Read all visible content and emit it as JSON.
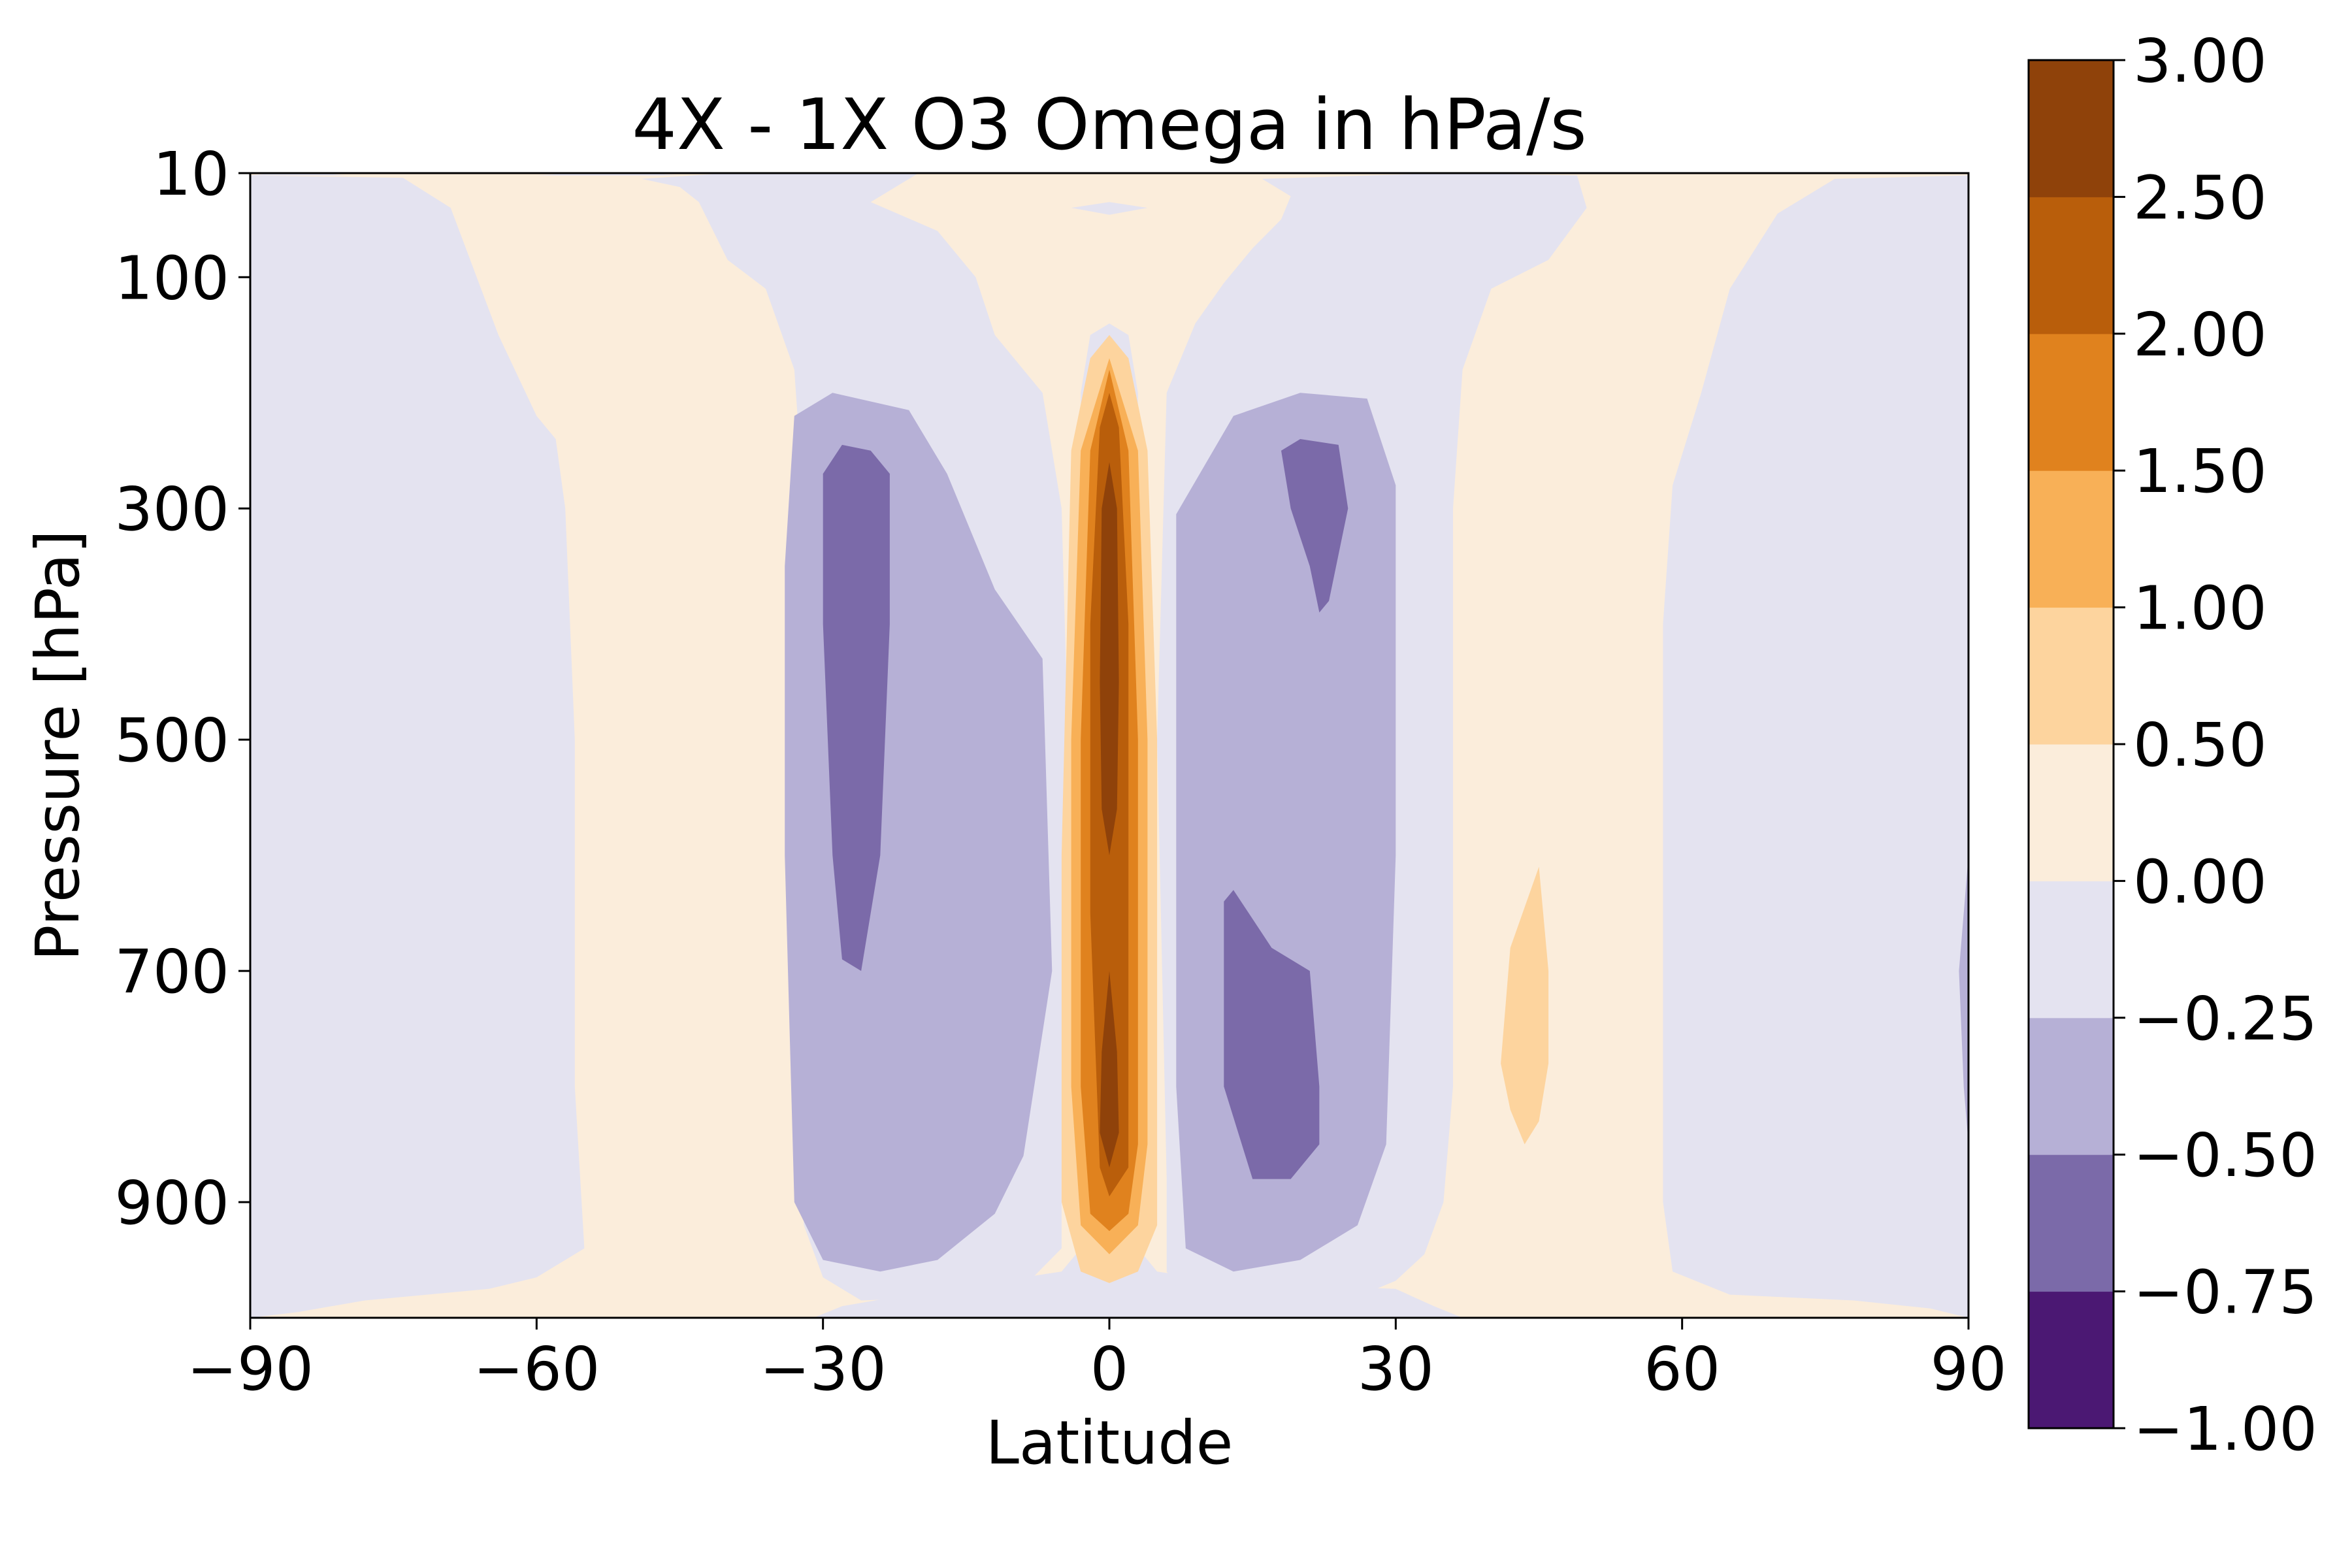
{
  "chart_data": {
    "type": "contourf",
    "title": "4X - 1X O3 Omega in hPa/s",
    "xlabel": "Latitude",
    "ylabel": "Pressure [hPa]",
    "xlim": [
      -90,
      90
    ],
    "ylim": [
      1000,
      10
    ],
    "x_ticks": [
      -90,
      -60,
      -30,
      0,
      30,
      60,
      90
    ],
    "x_tick_labels": [
      "−90",
      "−60",
      "−30",
      "0",
      "30",
      "60",
      "90"
    ],
    "y_ticks": [
      10,
      100,
      300,
      500,
      700,
      900
    ],
    "y_tick_labels": [
      "10",
      "100",
      "300",
      "500",
      "700",
      "900"
    ],
    "colorbar": {
      "levels": [
        -1.0,
        -0.75,
        -0.5,
        -0.25,
        0.0,
        0.5,
        1.0,
        1.5,
        2.0,
        2.5,
        3.0
      ],
      "tick_labels": [
        "−1.00",
        "−0.75",
        "−0.50",
        "−0.25",
        "0.00",
        "0.50",
        "1.00",
        "1.50",
        "2.00",
        "2.50",
        "3.00"
      ],
      "colors": [
        "#4b1873",
        "#7b6aa9",
        "#b6b0d6",
        "#e4e3f0",
        "#fbeddb",
        "#fdd49e",
        "#f8b057",
        "#e0821e",
        "#b95e0b",
        "#8f420a"
      ]
    },
    "regions": [
      {
        "level": 4,
        "points": [
          [
            -31,
            1000
          ],
          [
            -28,
            990
          ],
          [
            -14,
            970
          ],
          [
            -9,
            965
          ],
          [
            -5,
            960
          ],
          [
            -3,
            940
          ],
          [
            -3,
            880
          ],
          [
            -3,
            500
          ],
          [
            -3,
            200
          ],
          [
            -2,
            150
          ],
          [
            0,
            140
          ],
          [
            2,
            150
          ],
          [
            3,
            200
          ],
          [
            3,
            500
          ],
          [
            3,
            880
          ],
          [
            3,
            940
          ],
          [
            5,
            960
          ],
          [
            9,
            965
          ],
          [
            14,
            970
          ],
          [
            30,
            975
          ],
          [
            34,
            990
          ],
          [
            37,
            1000
          ],
          [
            90,
            1000
          ],
          [
            90,
            10
          ],
          [
            -90,
            10
          ],
          [
            -90,
            1000
          ]
        ]
      },
      {
        "level": 3,
        "points": [
          [
            -90,
            1000
          ],
          [
            -90,
            12
          ],
          [
            -74,
            14
          ],
          [
            -69,
            40
          ],
          [
            -64,
            150
          ],
          [
            -60,
            220
          ],
          [
            -58,
            240
          ],
          [
            -57,
            300
          ],
          [
            -56,
            500
          ],
          [
            -56,
            800
          ],
          [
            -55,
            940
          ],
          [
            -60,
            965
          ],
          [
            -65,
            975
          ],
          [
            -78,
            985
          ],
          [
            -85,
            995
          ]
        ]
      },
      {
        "level": 3,
        "points": [
          [
            -49,
            15
          ],
          [
            -45,
            22
          ],
          [
            -43,
            35
          ],
          [
            -40,
            85
          ],
          [
            -36,
            110
          ],
          [
            -33,
            180
          ],
          [
            -32,
            300
          ],
          [
            -33,
            500
          ],
          [
            -33,
            800
          ],
          [
            -32,
            920
          ],
          [
            -30,
            965
          ],
          [
            -26,
            985
          ],
          [
            -10,
            980
          ],
          [
            -8,
            965
          ],
          [
            -5,
            940
          ],
          [
            -5,
            880
          ],
          [
            -4,
            600
          ],
          [
            -5,
            300
          ],
          [
            -7,
            200
          ],
          [
            -12,
            150
          ],
          [
            -14,
            100
          ],
          [
            -18,
            60
          ],
          [
            -25,
            35
          ],
          [
            -20,
            10
          ],
          [
            -40,
            10
          ]
        ]
      },
      {
        "level": 3,
        "points": [
          [
            9,
            140
          ],
          [
            12,
            105
          ],
          [
            15,
            75
          ],
          [
            18,
            50
          ],
          [
            19,
            30
          ],
          [
            16,
            15
          ],
          [
            35,
            10
          ],
          [
            49,
            12
          ],
          [
            50,
            40
          ],
          [
            46,
            85
          ],
          [
            40,
            110
          ],
          [
            37,
            180
          ],
          [
            36,
            300
          ],
          [
            36,
            500
          ],
          [
            36,
            800
          ],
          [
            35,
            900
          ],
          [
            33,
            945
          ],
          [
            30,
            968
          ],
          [
            25,
            985
          ],
          [
            8,
            985
          ],
          [
            6,
            960
          ],
          [
            6,
            880
          ],
          [
            5,
            500
          ],
          [
            6,
            200
          ],
          [
            8,
            160
          ]
        ]
      },
      {
        "level": 3,
        "points": [
          [
            90,
            1000
          ],
          [
            90,
            12
          ],
          [
            76,
            15
          ],
          [
            70,
            45
          ],
          [
            65,
            110
          ],
          [
            62,
            200
          ],
          [
            59,
            280
          ],
          [
            58,
            400
          ],
          [
            58,
            600
          ],
          [
            58,
            900
          ],
          [
            59,
            960
          ],
          [
            65,
            980
          ],
          [
            78,
            985
          ],
          [
            86,
            992
          ]
        ]
      },
      {
        "level": 3,
        "points": [
          [
            -4,
            40
          ],
          [
            0,
            35
          ],
          [
            4,
            40
          ],
          [
            0,
            46
          ]
        ]
      },
      {
        "level": 3,
        "points": [
          [
            -90,
            12
          ],
          [
            -85,
            8
          ],
          [
            -80,
            12
          ]
        ]
      },
      {
        "level": 3,
        "points": [
          [
            -60,
            12
          ],
          [
            -52,
            8
          ],
          [
            -45,
            12
          ]
        ]
      },
      {
        "level": 2,
        "points": [
          [
            -33,
            220
          ],
          [
            -29,
            200
          ],
          [
            -21,
            215
          ],
          [
            -17,
            270
          ],
          [
            -12,
            370
          ],
          [
            -7,
            430
          ],
          [
            -6,
            700
          ],
          [
            -9,
            860
          ],
          [
            -12,
            910
          ],
          [
            -18,
            950
          ],
          [
            -24,
            960
          ],
          [
            -30,
            950
          ],
          [
            -33,
            900
          ],
          [
            -34,
            600
          ],
          [
            -34,
            350
          ]
        ]
      },
      {
        "level": 2,
        "points": [
          [
            7,
            305
          ],
          [
            13,
            220
          ],
          [
            20,
            200
          ],
          [
            27,
            205
          ],
          [
            30,
            280
          ],
          [
            30,
            600
          ],
          [
            29,
            850
          ],
          [
            26,
            920
          ],
          [
            20,
            950
          ],
          [
            13,
            960
          ],
          [
            8,
            940
          ],
          [
            7,
            800
          ],
          [
            7,
            500
          ]
        ]
      },
      {
        "level": 2,
        "points": [
          [
            90,
            600
          ],
          [
            89,
            700
          ],
          [
            89.5,
            800
          ],
          [
            90,
            850
          ]
        ]
      },
      {
        "level": 1,
        "points": [
          [
            -30,
            270
          ],
          [
            -28,
            245
          ],
          [
            -25,
            250
          ],
          [
            -23,
            270
          ],
          [
            -23,
            400
          ],
          [
            -24,
            600
          ],
          [
            -26,
            700
          ],
          [
            -28,
            690
          ],
          [
            -29,
            600
          ],
          [
            -30,
            400
          ]
        ]
      },
      {
        "level": 1,
        "points": [
          [
            18,
            250
          ],
          [
            20,
            240
          ],
          [
            24,
            245
          ],
          [
            25,
            300
          ],
          [
            23,
            380
          ],
          [
            22,
            390
          ],
          [
            21,
            350
          ],
          [
            19,
            300
          ]
        ]
      },
      {
        "level": 1,
        "points": [
          [
            12,
            640
          ],
          [
            13,
            630
          ],
          [
            17,
            680
          ],
          [
            21,
            700
          ],
          [
            22,
            800
          ],
          [
            22,
            850
          ],
          [
            19,
            880
          ],
          [
            15,
            880
          ],
          [
            12,
            800
          ]
        ]
      },
      {
        "level": 5,
        "points": [
          [
            -4,
            250
          ],
          [
            -2,
            170
          ],
          [
            0,
            150
          ],
          [
            2,
            170
          ],
          [
            4,
            250
          ],
          [
            5,
            500
          ],
          [
            5,
            800
          ],
          [
            5,
            920
          ],
          [
            3,
            960
          ],
          [
            0,
            970
          ],
          [
            -3,
            960
          ],
          [
            -5,
            900
          ],
          [
            -5,
            600
          ]
        ]
      },
      {
        "level": 5,
        "points": [
          [
            41,
            780
          ],
          [
            42,
            680
          ],
          [
            45,
            610
          ],
          [
            46,
            700
          ],
          [
            46,
            780
          ],
          [
            45,
            830
          ],
          [
            43.5,
            850
          ],
          [
            42,
            820
          ]
        ]
      },
      {
        "level": 6,
        "points": [
          [
            -3,
            250
          ],
          [
            0,
            170
          ],
          [
            3,
            250
          ],
          [
            4,
            500
          ],
          [
            4,
            850
          ],
          [
            3,
            920
          ],
          [
            0,
            945
          ],
          [
            -3,
            920
          ],
          [
            -4,
            800
          ],
          [
            -4,
            500
          ]
        ]
      },
      {
        "level": 7,
        "points": [
          [
            -2,
            250
          ],
          [
            0,
            180
          ],
          [
            2,
            250
          ],
          [
            3,
            500
          ],
          [
            3,
            850
          ],
          [
            2,
            910
          ],
          [
            0,
            925
          ],
          [
            -2,
            910
          ],
          [
            -3,
            800
          ],
          [
            -3,
            500
          ]
        ]
      },
      {
        "level": 8,
        "points": [
          [
            -1,
            230
          ],
          [
            0,
            200
          ],
          [
            1,
            230
          ],
          [
            2,
            400
          ],
          [
            2,
            650
          ],
          [
            2,
            870
          ],
          [
            0,
            895
          ],
          [
            -1,
            870
          ],
          [
            -2,
            650
          ],
          [
            -2,
            400
          ]
        ]
      },
      {
        "level": 9,
        "points": [
          [
            -0.8,
            300
          ],
          [
            0,
            260
          ],
          [
            0.8,
            300
          ],
          [
            1,
            450
          ],
          [
            0.8,
            560
          ],
          [
            0,
            600
          ],
          [
            -0.8,
            560
          ],
          [
            -1,
            450
          ]
        ]
      },
      {
        "level": 9,
        "points": [
          [
            -0.8,
            770
          ],
          [
            0,
            700
          ],
          [
            0.8,
            770
          ],
          [
            1,
            840
          ],
          [
            0,
            870
          ],
          [
            -1,
            840
          ]
        ]
      }
    ]
  }
}
